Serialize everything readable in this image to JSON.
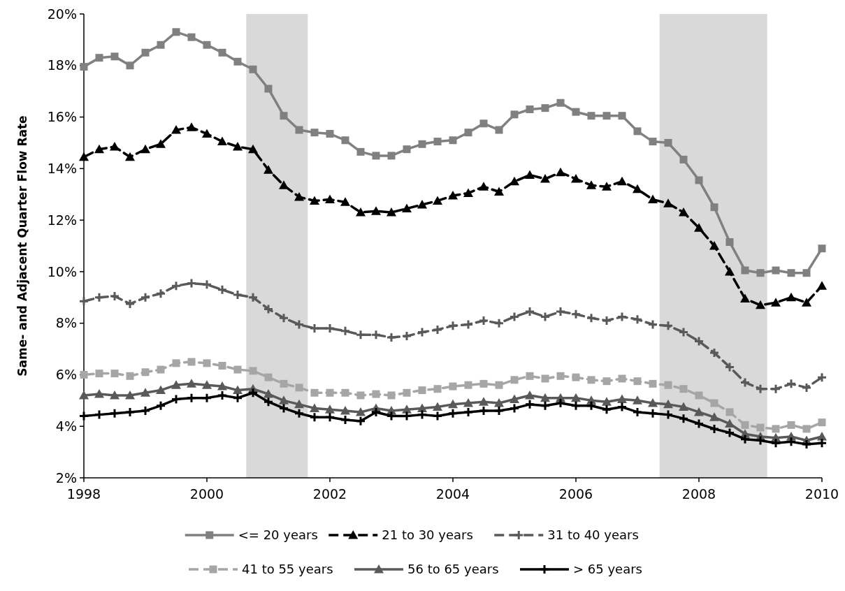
{
  "chart_data": {
    "type": "line",
    "ylabel": "Same- and Adjacent Quarter Flow Rate",
    "x": [
      1998,
      1998.25,
      1998.5,
      1998.75,
      1999,
      1999.25,
      1999.5,
      1999.75,
      2000,
      2000.25,
      2000.5,
      2000.75,
      2001,
      2001.25,
      2001.5,
      2001.75,
      2002,
      2002.25,
      2002.5,
      2002.75,
      2003,
      2003.25,
      2003.5,
      2003.75,
      2004,
      2004.25,
      2004.5,
      2004.75,
      2005,
      2005.25,
      2005.5,
      2005.75,
      2006,
      2006.25,
      2006.5,
      2006.75,
      2007,
      2007.25,
      2007.5,
      2007.75,
      2008,
      2008.25,
      2008.5,
      2008.75,
      2009,
      2009.25,
      2009.5,
      2009.75,
      2010
    ],
    "xlim": [
      1998,
      2010
    ],
    "xticks": [
      1998,
      2000,
      2002,
      2004,
      2006,
      2008,
      2010
    ],
    "ylim": [
      2,
      20
    ],
    "yticks": [
      {
        "value": 2,
        "label": "2%"
      },
      {
        "value": 4,
        "label": "4%"
      },
      {
        "value": 6,
        "label": "6%"
      },
      {
        "value": 8,
        "label": "8%"
      },
      {
        "value": 10,
        "label": "10%"
      },
      {
        "value": 12,
        "label": "12%"
      },
      {
        "value": 14,
        "label": "14%"
      },
      {
        "value": 16,
        "label": "16%"
      },
      {
        "value": 18,
        "label": "18%"
      },
      {
        "value": 20,
        "label": "20%"
      }
    ],
    "bands": [
      {
        "axis": "x",
        "from": 2000.64,
        "to": 2001.64,
        "color": "#d9d9d9"
      },
      {
        "axis": "x",
        "from": 2007.36,
        "to": 2009.11,
        "color": "#d9d9d9"
      }
    ],
    "legend": "bottom",
    "grid": false,
    "series": [
      {
        "name": "<= 20 years",
        "color": "#808080",
        "marker": "square",
        "line_style": "solid",
        "values": [
          17.95,
          18.3,
          18.35,
          18.0,
          18.5,
          18.8,
          19.3,
          19.1,
          18.8,
          18.5,
          18.15,
          17.85,
          17.1,
          16.05,
          15.5,
          15.4,
          15.35,
          15.1,
          14.65,
          14.5,
          14.5,
          14.75,
          14.95,
          15.05,
          15.1,
          15.4,
          15.75,
          15.5,
          16.1,
          16.3,
          16.35,
          16.55,
          16.2,
          16.05,
          16.05,
          16.05,
          15.45,
          15.05,
          15.0,
          14.35,
          13.55,
          12.5,
          11.15,
          10.05,
          9.95,
          10.05,
          9.95,
          9.95,
          10.9
        ]
      },
      {
        "name": "21 to 30 years",
        "color": "#000000",
        "marker": "triangle",
        "line_style": "dashed",
        "values": [
          14.45,
          14.75,
          14.85,
          14.45,
          14.75,
          14.95,
          15.5,
          15.6,
          15.35,
          15.05,
          14.85,
          14.75,
          13.95,
          13.35,
          12.9,
          12.75,
          12.8,
          12.7,
          12.3,
          12.35,
          12.3,
          12.45,
          12.6,
          12.75,
          12.95,
          13.05,
          13.3,
          13.1,
          13.5,
          13.75,
          13.6,
          13.85,
          13.6,
          13.35,
          13.3,
          13.5,
          13.2,
          12.8,
          12.65,
          12.3,
          11.7,
          11.0,
          10.0,
          8.95,
          8.7,
          8.8,
          9.0,
          8.8,
          9.45
        ]
      },
      {
        "name": "31 to 40 years",
        "color": "#595959",
        "marker": "cross",
        "line_style": "dashed",
        "values": [
          8.85,
          9.0,
          9.05,
          8.75,
          9.0,
          9.15,
          9.45,
          9.55,
          9.5,
          9.3,
          9.1,
          9.0,
          8.55,
          8.2,
          7.95,
          7.8,
          7.8,
          7.7,
          7.55,
          7.55,
          7.45,
          7.5,
          7.65,
          7.75,
          7.9,
          7.95,
          8.1,
          8.0,
          8.25,
          8.45,
          8.25,
          8.45,
          8.35,
          8.2,
          8.1,
          8.25,
          8.15,
          7.95,
          7.9,
          7.65,
          7.3,
          6.85,
          6.3,
          5.7,
          5.45,
          5.45,
          5.65,
          5.5,
          5.9
        ]
      },
      {
        "name": "41 to 55 years",
        "color": "#a6a6a6",
        "marker": "square",
        "line_style": "dashed",
        "values": [
          6.0,
          6.05,
          6.05,
          5.95,
          6.1,
          6.2,
          6.45,
          6.5,
          6.45,
          6.35,
          6.2,
          6.15,
          5.9,
          5.65,
          5.5,
          5.3,
          5.3,
          5.3,
          5.2,
          5.25,
          5.2,
          5.3,
          5.4,
          5.45,
          5.55,
          5.6,
          5.65,
          5.6,
          5.8,
          5.95,
          5.85,
          5.95,
          5.9,
          5.8,
          5.75,
          5.85,
          5.75,
          5.65,
          5.6,
          5.45,
          5.2,
          4.9,
          4.55,
          4.05,
          3.95,
          3.9,
          4.05,
          3.9,
          4.15
        ]
      },
      {
        "name": "56 to 65 years",
        "color": "#595959",
        "marker": "triangle",
        "line_style": "solid",
        "values": [
          5.2,
          5.25,
          5.2,
          5.2,
          5.3,
          5.4,
          5.6,
          5.65,
          5.6,
          5.55,
          5.4,
          5.45,
          5.25,
          5.0,
          4.85,
          4.7,
          4.65,
          4.6,
          4.55,
          4.7,
          4.6,
          4.65,
          4.7,
          4.75,
          4.85,
          4.9,
          4.95,
          4.9,
          5.05,
          5.2,
          5.1,
          5.1,
          5.1,
          5.0,
          4.95,
          5.05,
          5.0,
          4.9,
          4.85,
          4.75,
          4.55,
          4.35,
          4.1,
          3.7,
          3.6,
          3.55,
          3.6,
          3.45,
          3.6
        ]
      },
      {
        "name": "> 65 years",
        "color": "#000000",
        "marker": "cross",
        "line_style": "solid",
        "values": [
          4.4,
          4.45,
          4.5,
          4.55,
          4.6,
          4.8,
          5.05,
          5.1,
          5.1,
          5.2,
          5.1,
          5.3,
          4.95,
          4.7,
          4.5,
          4.35,
          4.35,
          4.25,
          4.2,
          4.55,
          4.4,
          4.4,
          4.45,
          4.4,
          4.5,
          4.55,
          4.6,
          4.6,
          4.7,
          4.85,
          4.8,
          4.9,
          4.8,
          4.8,
          4.65,
          4.75,
          4.55,
          4.5,
          4.45,
          4.3,
          4.1,
          3.9,
          3.75,
          3.5,
          3.45,
          3.35,
          3.4,
          3.3,
          3.35
        ]
      }
    ]
  }
}
